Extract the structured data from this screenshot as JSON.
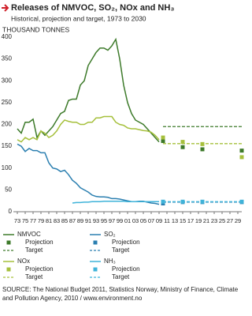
{
  "chart_data": {
    "type": "line",
    "title": "Releases of NMVOC, SO₂, NOx and NH₃",
    "subtitle": "Historical, projection and target, 1973 to 2030",
    "y_label": "THOUSAND TONNES",
    "source": "SOURCE: The National Budget 2011, Statistics Norway, Ministry of Finance, Climate and Pollution Agency, 2010 / www.environment.no",
    "xlim": [
      1972,
      2030
    ],
    "xticks": [
      {
        "value": 1973,
        "label": "73"
      },
      {
        "value": 1975,
        "label": "75"
      },
      {
        "value": 1977,
        "label": "77"
      },
      {
        "value": 1979,
        "label": "79"
      },
      {
        "value": 1981,
        "label": "81"
      },
      {
        "value": 1983,
        "label": "83"
      },
      {
        "value": 1985,
        "label": "85"
      },
      {
        "value": 1987,
        "label": "87"
      },
      {
        "value": 1989,
        "label": "89"
      },
      {
        "value": 1991,
        "label": "91"
      },
      {
        "value": 1993,
        "label": "93"
      },
      {
        "value": 1995,
        "label": "95"
      },
      {
        "value": 1997,
        "label": "97"
      },
      {
        "value": 1999,
        "label": "99"
      },
      {
        "value": 2001,
        "label": "01"
      },
      {
        "value": 2003,
        "label": "03"
      },
      {
        "value": 2005,
        "label": "05"
      },
      {
        "value": 2007,
        "label": "07"
      },
      {
        "value": 2009,
        "label": "09"
      },
      {
        "value": 2011,
        "label": "11"
      },
      {
        "value": 2013,
        "label": "13"
      },
      {
        "value": 2015,
        "label": "15"
      },
      {
        "value": 2017,
        "label": "17"
      },
      {
        "value": 2019,
        "label": "19"
      },
      {
        "value": 2021,
        "label": "21"
      },
      {
        "value": 2023,
        "label": "23"
      },
      {
        "value": 2025,
        "label": "25"
      },
      {
        "value": 2027,
        "label": "27"
      },
      {
        "value": 2029,
        "label": "29"
      }
    ],
    "ylim": [
      0,
      400
    ],
    "yticks": [
      0,
      50,
      100,
      150,
      200,
      250,
      300,
      350,
      400
    ],
    "series": [
      {
        "name": "NMVOC",
        "color": "#3d7a2a",
        "style": "line",
        "x": [
          1973,
          1974,
          1975,
          1976,
          1977,
          1978,
          1979,
          1980,
          1981,
          1982,
          1983,
          1984,
          1985,
          1986,
          1987,
          1988,
          1989,
          1990,
          1991,
          1992,
          1993,
          1994,
          1995,
          1996,
          1997,
          1998,
          1999,
          2000,
          2001,
          2002,
          2003,
          2004,
          2005,
          2006,
          2007,
          2008,
          2009
        ],
        "values": [
          190,
          180,
          205,
          205,
          212,
          170,
          185,
          175,
          185,
          195,
          210,
          225,
          230,
          255,
          258,
          258,
          290,
          300,
          335,
          350,
          365,
          375,
          375,
          370,
          380,
          395,
          350,
          290,
          250,
          225,
          210,
          205,
          200,
          190,
          180,
          170,
          160
        ]
      },
      {
        "name": "Projection",
        "color": "#3d7a2a",
        "style": "markers",
        "x": [
          2010,
          2015,
          2020,
          2030
        ],
        "values": [
          162,
          148,
          143,
          140
        ]
      },
      {
        "name": "Target",
        "color": "#3d7a2a",
        "style": "dashed",
        "x": [
          2010,
          2030
        ],
        "values": [
          195,
          195
        ]
      },
      {
        "name": "SO₂",
        "color": "#2b7fb0",
        "style": "line",
        "x": [
          1973,
          1974,
          1975,
          1976,
          1977,
          1978,
          1979,
          1980,
          1981,
          1982,
          1983,
          1984,
          1985,
          1986,
          1987,
          1988,
          1989,
          1990,
          1991,
          1992,
          1993,
          1994,
          1995,
          1996,
          1997,
          1998,
          1999,
          2000,
          2001,
          2002,
          2003,
          2004,
          2005,
          2006,
          2007,
          2008,
          2009
        ],
        "values": [
          155,
          150,
          138,
          145,
          140,
          140,
          135,
          135,
          112,
          100,
          98,
          92,
          95,
          85,
          72,
          65,
          55,
          50,
          45,
          38,
          35,
          34,
          34,
          33,
          30,
          30,
          29,
          27,
          25,
          23,
          23,
          24,
          24,
          22,
          20,
          19,
          17
        ]
      },
      {
        "name": "Projection",
        "color": "#2b7fb0",
        "style": "markers",
        "x": [
          2010,
          2015,
          2020,
          2030
        ],
        "values": [
          19,
          22,
          22,
          22
        ]
      },
      {
        "name": "Target",
        "color": "#2b7fb0",
        "style": "dashed",
        "x": [
          2010,
          2030
        ],
        "values": [
          22,
          22
        ]
      },
      {
        "name": "NOx",
        "color": "#a6c03c",
        "style": "line",
        "x": [
          1973,
          1974,
          1975,
          1976,
          1977,
          1978,
          1979,
          1980,
          1981,
          1982,
          1983,
          1984,
          1985,
          1986,
          1987,
          1988,
          1989,
          1990,
          1991,
          1992,
          1993,
          1994,
          1995,
          1996,
          1997,
          1998,
          1999,
          2000,
          2001,
          2002,
          2003,
          2004,
          2005,
          2006,
          2007,
          2008,
          2009
        ],
        "values": [
          165,
          160,
          170,
          165,
          170,
          165,
          185,
          180,
          170,
          175,
          185,
          200,
          210,
          207,
          205,
          205,
          200,
          200,
          205,
          205,
          215,
          215,
          218,
          218,
          218,
          205,
          200,
          198,
          192,
          190,
          190,
          188,
          186,
          185,
          182,
          175,
          165
        ]
      },
      {
        "name": "Projection",
        "color": "#a6c03c",
        "style": "markers",
        "x": [
          2010,
          2015,
          2020,
          2030
        ],
        "values": [
          170,
          160,
          155,
          125
        ]
      },
      {
        "name": "Target",
        "color": "#a6c03c",
        "style": "dashed",
        "x": [
          2010,
          2030
        ],
        "values": [
          156,
          156
        ]
      },
      {
        "name": "NH₃",
        "color": "#3fb3d9",
        "style": "line",
        "x": [
          1987,
          1988,
          1989,
          1990,
          1991,
          1992,
          1993,
          1994,
          1995,
          1996,
          1997,
          1998,
          1999,
          2000,
          2001,
          2002,
          2003,
          2004,
          2005,
          2006,
          2007,
          2008,
          2009
        ],
        "values": [
          20,
          21,
          21,
          22,
          22,
          23,
          23,
          23,
          24,
          24,
          24,
          24,
          24,
          24,
          23,
          23,
          23,
          23,
          23,
          23,
          23,
          23,
          23
        ]
      },
      {
        "name": "Projection",
        "color": "#3fb3d9",
        "style": "markers",
        "x": [
          2010,
          2015,
          2020,
          2030
        ],
        "values": [
          23,
          23,
          23,
          23
        ]
      },
      {
        "name": "Target",
        "color": "#3fb3d9",
        "style": "dashed",
        "x": [
          2010,
          2030
        ],
        "values": [
          23,
          23
        ]
      }
    ]
  }
}
